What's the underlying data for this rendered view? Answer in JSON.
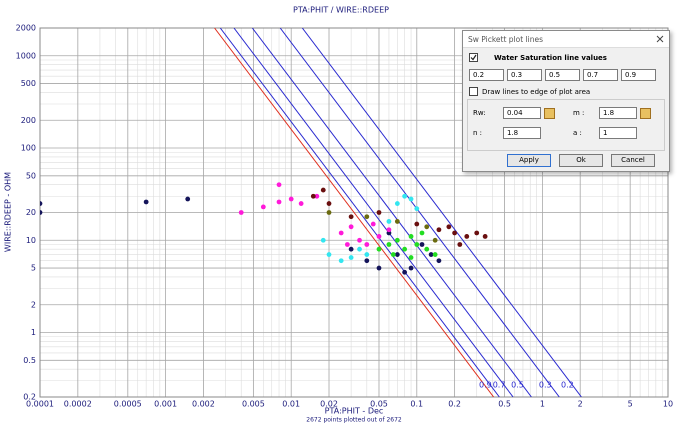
{
  "chart_data": {
    "type": "scatter",
    "title": "PTA:PHIT / WIRE::RDEEP",
    "xlabel": "PTA:PHIT - Dec",
    "ylabel": "WIRE::RDEEP - OHM",
    "footer": "2672 points plotted out of 2672",
    "xlog": true,
    "ylog": true,
    "grid": true,
    "minor_grid": true,
    "xlim": [
      0.0001,
      10
    ],
    "ylim": [
      0.2,
      2000
    ],
    "xticks": [
      0.0001,
      0.0002,
      0.0005,
      0.001,
      0.002,
      0.005,
      0.01,
      0.02,
      0.05,
      0.1,
      0.2,
      0.5,
      1,
      2,
      5,
      10
    ],
    "yticks": [
      0.2,
      0.5,
      1,
      2,
      5,
      10,
      20,
      50,
      100,
      200,
      500,
      1000,
      2000
    ],
    "sw_line_color": "#2a2ad0",
    "archie_line_color": "#e03020",
    "series": [
      {
        "color": "#14145a",
        "x": [
          0.0001,
          0.0001,
          0.0007,
          0.0015,
          0.03,
          0.04,
          0.05,
          0.07,
          0.09,
          0.11,
          0.13,
          0.15,
          0.06,
          0.08
        ],
        "y": [
          25,
          20,
          26,
          28,
          8,
          6,
          5,
          7,
          5,
          9,
          7,
          6,
          12,
          4.5
        ]
      },
      {
        "color": "#ff1ad9",
        "x": [
          0.004,
          0.006,
          0.008,
          0.01,
          0.012,
          0.008,
          0.016,
          0.025,
          0.03,
          0.035,
          0.04,
          0.05,
          0.045,
          0.06,
          0.028
        ],
        "y": [
          20,
          23,
          26,
          28,
          25,
          40,
          30,
          12,
          14,
          10,
          9,
          11,
          15,
          13,
          9
        ]
      },
      {
        "color": "#33e6f0",
        "x": [
          0.018,
          0.02,
          0.025,
          0.03,
          0.04,
          0.07,
          0.08,
          0.09,
          0.1,
          0.035,
          0.06
        ],
        "y": [
          10,
          7,
          6,
          6.5,
          7,
          25,
          30,
          28,
          22,
          8,
          16
        ]
      },
      {
        "color": "#22dd22",
        "x": [
          0.05,
          0.06,
          0.07,
          0.08,
          0.09,
          0.1,
          0.12,
          0.14,
          0.11,
          0.065,
          0.09
        ],
        "y": [
          8,
          9,
          10,
          8,
          11,
          9,
          8,
          7,
          12,
          7,
          6.5
        ]
      },
      {
        "color": "#6a0f0f",
        "x": [
          0.015,
          0.02,
          0.018,
          0.03,
          0.05,
          0.1,
          0.15,
          0.2,
          0.25,
          0.3,
          0.35,
          0.18,
          0.22
        ],
        "y": [
          30,
          25,
          35,
          18,
          20,
          15,
          13,
          12,
          11,
          12,
          11,
          14,
          9
        ]
      },
      {
        "color": "#6b6b10",
        "x": [
          0.02,
          0.04,
          0.07,
          0.12,
          0.14
        ],
        "y": [
          20,
          18,
          16,
          14,
          10
        ]
      }
    ]
  },
  "dialog": {
    "title": "Sw Pickett plot lines",
    "section": "Water Saturation line values",
    "sw_checked": true,
    "sw_values": [
      0.2,
      0.3,
      0.5,
      0.7,
      0.9
    ],
    "edge_label": "Draw lines to edge of plot area",
    "edge_checked": false,
    "rw_label": "Rw:",
    "rw": 0.04,
    "m_label": "m :",
    "m": 1.8,
    "n_label": "n :",
    "n": 1.8,
    "a_label": "a :",
    "a": 1,
    "buttons": [
      "Apply",
      "Ok",
      "Cancel"
    ]
  }
}
